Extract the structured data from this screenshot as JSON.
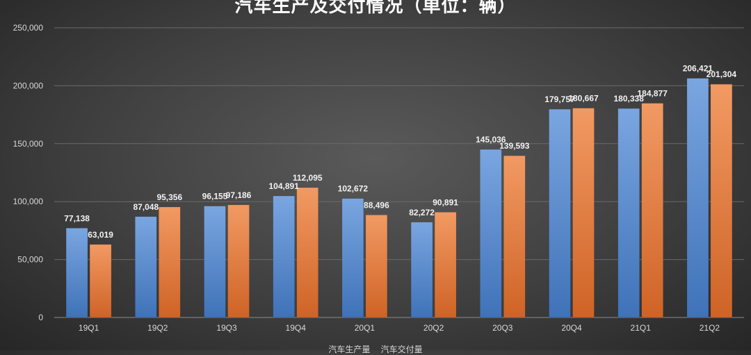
{
  "chart_data": {
    "type": "bar",
    "title": "汽车生产及交付情况（单位：辆）",
    "categories": [
      "19Q1",
      "19Q2",
      "19Q3",
      "19Q4",
      "20Q1",
      "20Q2",
      "20Q3",
      "20Q4",
      "21Q1",
      "21Q2"
    ],
    "series": [
      {
        "name": "汽车生产量",
        "color": "#5b8fd1",
        "values": [
          77138,
          87048,
          96155,
          104891,
          102672,
          82272,
          145036,
          179757,
          180338,
          206421
        ],
        "labels": [
          "77,138",
          "87,048",
          "96,155",
          "104,891",
          "102,672",
          "82,272",
          "145,036",
          "179,757",
          "180,338",
          "206,421"
        ]
      },
      {
        "name": "汽车交付量",
        "color": "#e07b3a",
        "values": [
          63019,
          95356,
          97186,
          112095,
          88496,
          90891,
          139593,
          180667,
          184877,
          201304
        ],
        "labels": [
          "63,019",
          "95,356",
          "97,186",
          "112,095",
          "88,496",
          "90,891",
          "139,593",
          "180,667",
          "184,877",
          "201,304"
        ]
      }
    ],
    "ylim": [
      0,
      250000
    ],
    "yticks": [
      0,
      50000,
      100000,
      150000,
      200000,
      250000
    ],
    "ytick_labels": [
      "0",
      "50,000",
      "100,000",
      "150,000",
      "200,000",
      "250,000"
    ],
    "grid": true,
    "legend_position": "bottom"
  }
}
